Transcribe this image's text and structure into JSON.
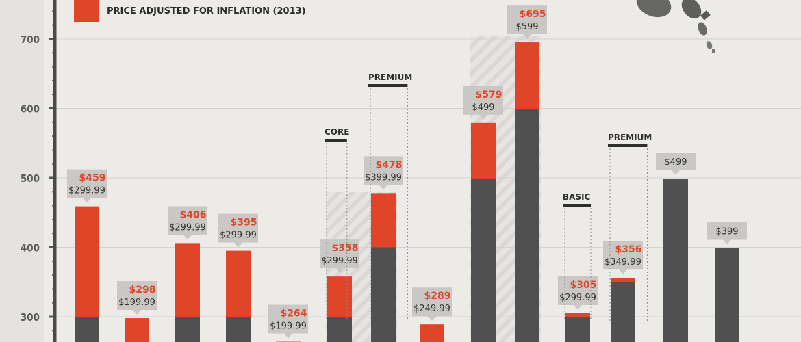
{
  "legend": {
    "adjusted_label": "PRICE ADJUSTED FOR INFLATION (2013)",
    "adjusted_color": "#e0452a",
    "original_color": "#505050"
  },
  "chart_data": {
    "type": "bar",
    "y_ticks": [
      300,
      400,
      500,
      600,
      700
    ],
    "ylim": [
      268,
      755
    ],
    "grid": true,
    "bars": [
      {
        "original": 299.99,
        "adjusted": 459,
        "orig_label": "$299.99",
        "adj_label": "$459"
      },
      {
        "original": 199.99,
        "adjusted": 298,
        "orig_label": "$199.99",
        "adj_label": "$298"
      },
      {
        "original": 299.99,
        "adjusted": 406,
        "orig_label": "$299.99",
        "adj_label": "$406"
      },
      {
        "original": 299.99,
        "adjusted": 395,
        "orig_label": "$299.99",
        "adj_label": "$395"
      },
      {
        "original": 199.99,
        "adjusted": 264,
        "orig_label": "$199.99",
        "adj_label": "$264"
      },
      {
        "original": 299.99,
        "adjusted": 358,
        "orig_label": "$299.99",
        "adj_label": "$358"
      },
      {
        "original": 399.99,
        "adjusted": 478,
        "orig_label": "$399.99",
        "adj_label": "$478"
      },
      {
        "original": 249.99,
        "adjusted": 289,
        "orig_label": "$249.99",
        "adj_label": "$289"
      },
      {
        "original": 499,
        "adjusted": 579,
        "orig_label": "$499",
        "adj_label": "$579"
      },
      {
        "original": 599,
        "adjusted": 695,
        "orig_label": "$599",
        "adj_label": "$695"
      },
      {
        "original": 299.99,
        "adjusted": 305,
        "orig_label": "$299.99",
        "adj_label": "$305"
      },
      {
        "original": 349.99,
        "adjusted": 356,
        "orig_label": "$349.99",
        "adj_label": "$356"
      },
      {
        "original": 499,
        "adjusted": null,
        "orig_label": "$499",
        "adj_label": ""
      },
      {
        "original": 399,
        "adjusted": null,
        "orig_label": "$399",
        "adj_label": ""
      }
    ],
    "group_labels": [
      {
        "text": "CORE",
        "bar": 5
      },
      {
        "text": "PREMIUM",
        "bar": 6
      },
      {
        "text": "BASIC",
        "bar": 10
      },
      {
        "text": "PREMIUM",
        "bar": 11
      }
    ]
  }
}
